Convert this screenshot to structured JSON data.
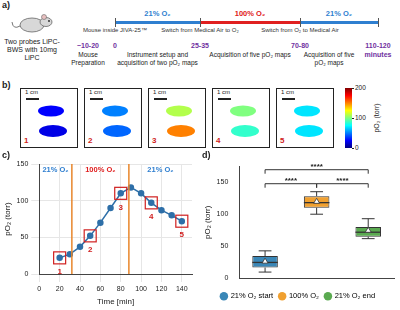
{
  "figure": {
    "a": {
      "label": "a)",
      "subject": "Two probes LiPC-BWS with 10mg LiPC",
      "phases": [
        {
          "label": "21% O₂",
          "color": "#2f7fd0"
        },
        {
          "label": "100% O₂",
          "color": "#e02020"
        },
        {
          "label": "21% O₂",
          "color": "#2f7fd0"
        }
      ],
      "events": [
        "Mouse inside JIVA-25™",
        "Switch from Medical Air to O₂",
        "Switch from O₂ to Medical Air"
      ],
      "times": [
        "~10-20",
        "0",
        "25-35",
        "70-80",
        "110-120"
      ],
      "unit": "minutes",
      "activities": [
        "Mouse Preparation",
        "Instrument setup and acquisition of two pO₂ maps",
        "Acquisition of five pO₂ maps",
        "Acquisition of five pO₂ maps"
      ]
    },
    "b": {
      "label": "b)",
      "scale_bar": "1 cm",
      "images": [
        {
          "label": "1",
          "pO2": [
            25,
            20
          ]
        },
        {
          "label": "2",
          "pO2": [
            50,
            45
          ]
        },
        {
          "label": "3",
          "pO2": [
            110,
            150
          ]
        },
        {
          "label": "4",
          "pO2": [
            100,
            85
          ]
        },
        {
          "label": "5",
          "pO2": [
            70,
            70
          ]
        }
      ],
      "colorbar": {
        "label": "pO₂ (torr)",
        "range": [
          0,
          200
        ],
        "ticks": [
          0,
          100,
          200
        ]
      }
    }
  },
  "chart_data": [
    {
      "type": "line",
      "panel": "c)",
      "x": [
        20,
        30,
        40,
        50,
        60,
        70,
        80,
        90,
        100,
        110,
        120,
        130,
        140
      ],
      "values": [
        22,
        27,
        37,
        52,
        70,
        90,
        110,
        118,
        110,
        97,
        87,
        80,
        72
      ],
      "color": "#2e6fa8",
      "marker": "circle",
      "xlim": [
        0,
        150
      ],
      "xticks": [
        0,
        20,
        40,
        60,
        80,
        100,
        120,
        140
      ],
      "ylim": [
        0,
        150
      ],
      "yticks": [
        0,
        50,
        100,
        150
      ],
      "x_label": "Time [min]",
      "y_label": "pO₂ (torr)",
      "grid": true,
      "switch_times": [
        32,
        88
      ],
      "switch_color": "#e8862b",
      "phases": [
        {
          "label": "21% O₂",
          "color": "#2f7fd0"
        },
        {
          "label": "100% O₂",
          "color": "#e02020"
        },
        {
          "label": "21% O₂",
          "color": "#2f7fd0"
        }
      ],
      "highlights": {
        "x": [
          20,
          50,
          80,
          110,
          140
        ],
        "labels": [
          "1",
          "2",
          "3",
          "4",
          "5"
        ],
        "color": "#d02020"
      }
    },
    {
      "type": "box",
      "panel": "d)",
      "categories": [
        "21% O₂ start",
        "100% O₂",
        "21% O₂ end"
      ],
      "colors": [
        "#3a87b7",
        "#f0a030",
        "#5aaa50"
      ],
      "min": [
        10,
        100,
        62
      ],
      "q1": [
        17,
        110,
        65
      ],
      "median": [
        25,
        118,
        72
      ],
      "q3": [
        35,
        128,
        80
      ],
      "max": [
        43,
        135,
        93
      ],
      "mean": [
        27,
        120,
        75
      ],
      "ylim": [
        0,
        175
      ],
      "yticks": [
        0,
        50,
        100,
        150
      ],
      "y_label": "pO₂ (torr)",
      "grid": false,
      "tick_labels": "y",
      "legend": "bottom",
      "significance": [
        {
          "pair": [
            0,
            1
          ],
          "label": "****"
        },
        {
          "pair": [
            1,
            2
          ],
          "label": "****"
        },
        {
          "pair": [
            0,
            2
          ],
          "label": "****"
        }
      ]
    }
  ]
}
